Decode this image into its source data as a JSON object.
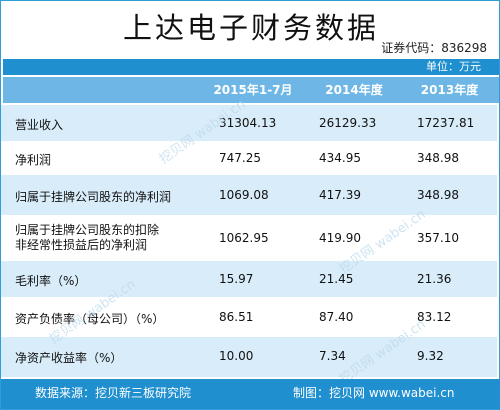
{
  "header": {
    "title": "上达电子财务数据",
    "security_code": "证券代码：836298",
    "unit": "单位：万元"
  },
  "table": {
    "columns": [
      "",
      "2015年1-7月",
      "2014年度",
      "2013年度"
    ],
    "rows": [
      {
        "label": "营业收入",
        "v1": "31304.13",
        "v2": "26129.33",
        "v3": "17237.81"
      },
      {
        "label": "净利润",
        "v1": "747.25",
        "v2": "434.95",
        "v3": "348.98"
      },
      {
        "label": "归属于挂牌公司股东的净利润",
        "v1": "1069.08",
        "v2": "417.39",
        "v3": "348.98"
      },
      {
        "label": "归属于挂牌公司股东的扣除",
        "label_line2": "非经常性损益后的净利润",
        "v1": "1062.95",
        "v2": "419.90",
        "v3": "357.10"
      },
      {
        "label": "毛利率（%）",
        "v1": "15.97",
        "v2": "21.45",
        "v3": "21.36"
      },
      {
        "label": "资产负债率（母公司）（%）",
        "v1": "86.51",
        "v2": "87.40",
        "v3": "83.12"
      },
      {
        "label": "净资产收益率（%）",
        "v1": "10.00",
        "v2": "7.34",
        "v3": "9.32"
      }
    ]
  },
  "footer": {
    "source": "数据来源：挖贝新三板研究院",
    "maker": "制图：挖贝网 www.wabei.cn"
  },
  "watermark": {
    "text": "挖贝网 wabei.cn"
  },
  "colors": {
    "accent": "#1f8fd0",
    "header_row": "#6db6e6",
    "stripe": "#d9ecf9"
  }
}
